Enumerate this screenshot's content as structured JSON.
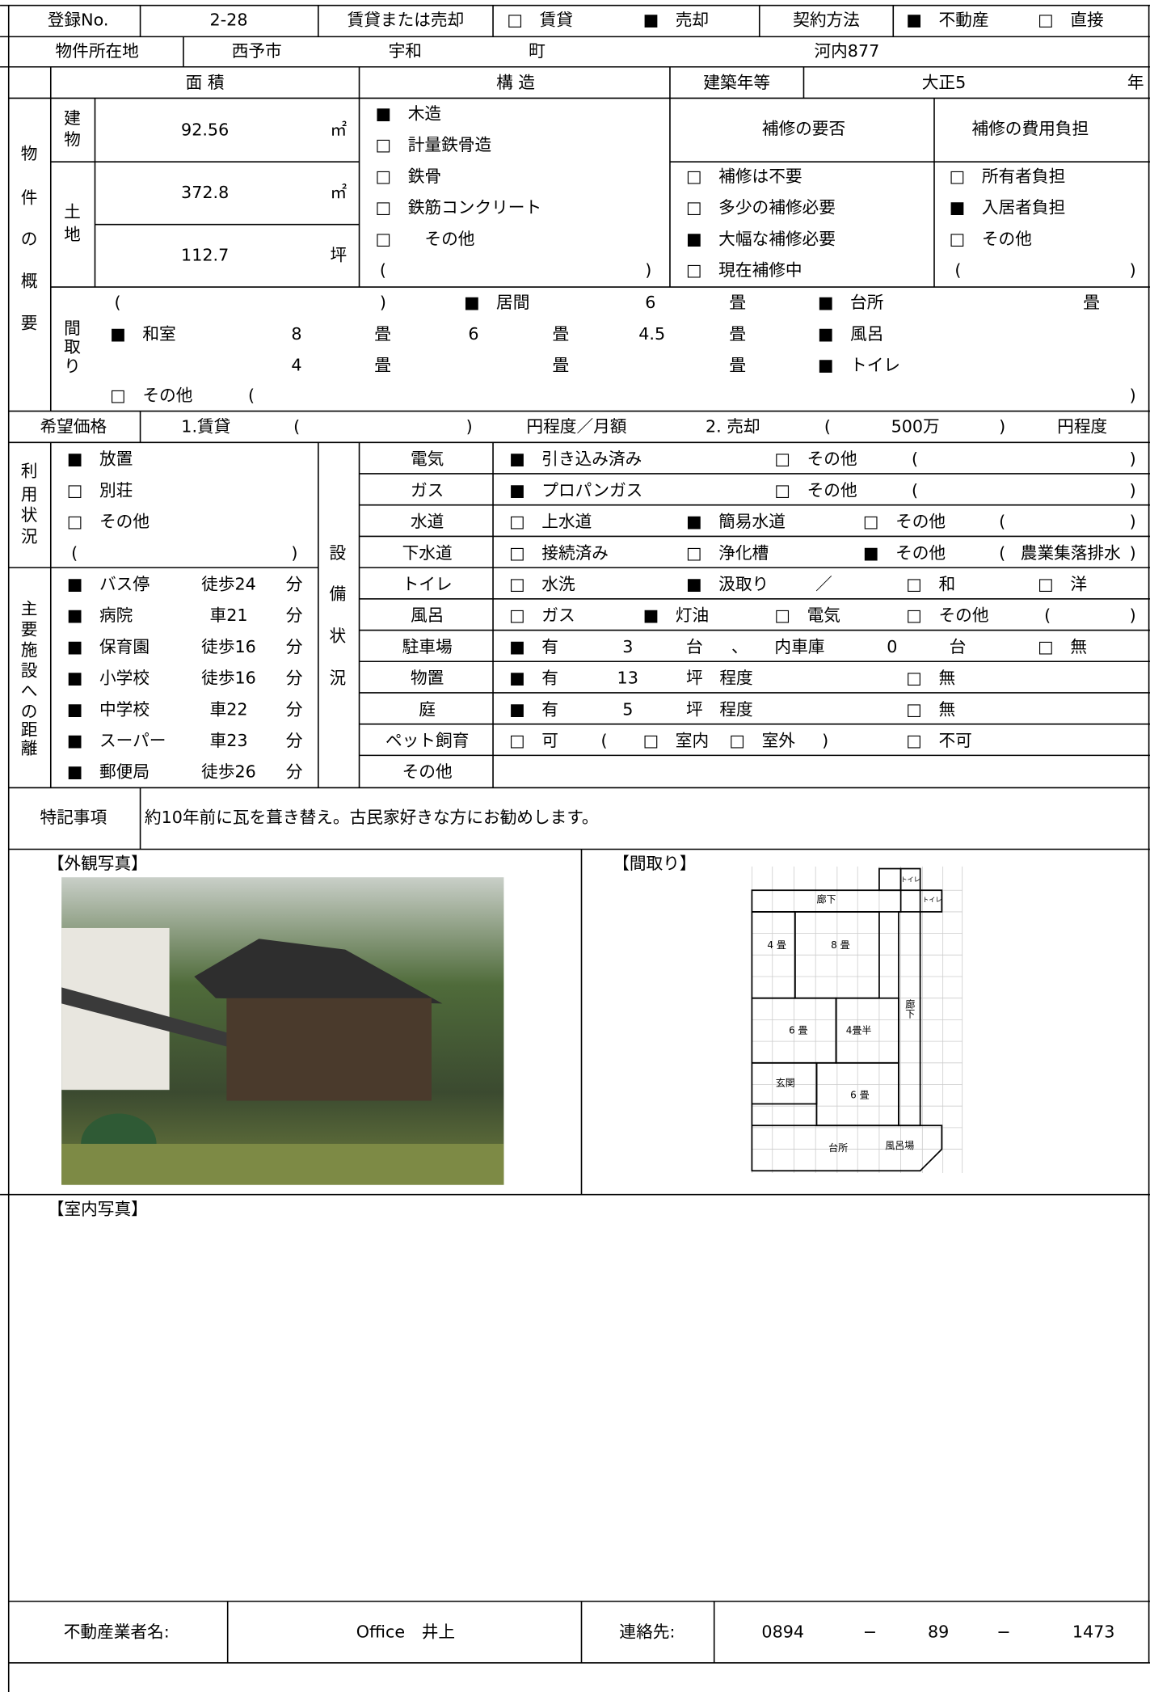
{
  "header": {
    "reg_label": "登録No.",
    "reg_no": "2-28",
    "deal_label": "賃貸または売却",
    "rent": "□　賃貸",
    "sale": "■　売却",
    "contract_label": "契約方法",
    "realtor": "■　不動産",
    "direct": "□　直接"
  },
  "location": {
    "label": "物件所在地",
    "city": "西予市",
    "town": "宇和",
    "town_suffix": "町",
    "address": "河内877"
  },
  "overview": {
    "side": [
      "物",
      "件",
      "の",
      "概",
      "要"
    ],
    "area_label": "面 積",
    "structure_label": "構 造",
    "year_label": "建築年等",
    "year": "大正5",
    "year_unit": "年",
    "building_label": [
      "建",
      "物"
    ],
    "building_area": "92.56",
    "sqm": "㎡",
    "land_label": [
      "土",
      "地"
    ],
    "land_area": "372.8",
    "land_sqm": "㎡",
    "land_tsubo": "112.7",
    "tsubo": "坪",
    "structure": [
      "■　木造",
      "□　計量鉄骨造",
      "□　鉄骨",
      "□　鉄筋コンクリート",
      "□　　その他"
    ],
    "structure_paren": [
      "(",
      ")"
    ],
    "repair_label": "補修の要否",
    "repair": [
      "□　補修は不要",
      "□　多少の補修必要",
      "■　大幅な補修必要",
      "□　現在補修中"
    ],
    "cost_label": "補修の費用負担",
    "cost": [
      "□　所有者負担",
      "■　入居者負担",
      "□　その他"
    ],
    "cost_paren": [
      "(",
      ")"
    ],
    "layout_label": [
      "間",
      "取",
      "り"
    ],
    "layout_rows": [
      [
        "(",
        ")",
        "■",
        "居間",
        "6",
        "畳",
        "■　台所",
        "畳"
      ],
      [
        "■　和室",
        "8",
        "畳",
        "6",
        "畳",
        "4.5",
        "畳",
        "■　風呂"
      ],
      [
        "4",
        "畳",
        "畳",
        "畳",
        "■　トイレ"
      ],
      [
        "□　その他",
        "(",
        ")"
      ]
    ]
  },
  "price": {
    "label": "希望価格",
    "items": [
      "1.賃貸",
      "(",
      ")",
      "円程度／月額",
      "2. 売却",
      "(",
      "500万",
      ")",
      "円程度"
    ]
  },
  "usage": {
    "side": [
      "利",
      "用",
      "状",
      "況"
    ],
    "items": [
      "■　放置",
      "□　別荘",
      "□　その他"
    ],
    "paren": [
      "(",
      ")"
    ]
  },
  "facilities": {
    "side": [
      "主",
      "要",
      "施",
      "設",
      "へ",
      "の",
      "距",
      "離"
    ],
    "rows": [
      [
        "■　バス停",
        "徒歩24",
        "分"
      ],
      [
        "■　病院",
        "車21",
        "分"
      ],
      [
        "■　保育園",
        "徒歩16",
        "分"
      ],
      [
        "■　小学校",
        "徒歩16",
        "分"
      ],
      [
        "■　中学校",
        "車22",
        "分"
      ],
      [
        "■　スーパー",
        "車23",
        "分"
      ],
      [
        "■　郵便局",
        "徒歩26",
        "分"
      ]
    ]
  },
  "equipment": {
    "side": [
      "設",
      "備",
      "状",
      "況"
    ],
    "rows": [
      {
        "label": "電気",
        "items": [
          "■　引き込み済み",
          "□　その他",
          "(",
          ")"
        ]
      },
      {
        "label": "ガス",
        "items": [
          "■　プロパンガス",
          "□　その他",
          "(",
          ")"
        ]
      },
      {
        "label": "水道",
        "items": [
          "□　上水道",
          "■　簡易水道",
          "□　その他",
          "(",
          ")"
        ]
      },
      {
        "label": "下水道",
        "items": [
          "□　接続済み",
          "□　浄化槽",
          "■　その他",
          "(",
          "農業集落排水",
          ")"
        ]
      },
      {
        "label": "トイレ",
        "items": [
          "□　水洗",
          "■　汲取り",
          "／",
          "□　和",
          "□　洋"
        ]
      },
      {
        "label": "風呂",
        "items": [
          "□　ガス",
          "■　灯油",
          "□　電気",
          "□　その他",
          "(",
          ")"
        ]
      },
      {
        "label": "駐車場",
        "items": [
          "■　有",
          "3",
          "台",
          "、",
          "内車庫",
          "0",
          "台",
          "□　無"
        ]
      },
      {
        "label": "物置",
        "items": [
          "■　有",
          "13",
          "坪　程度",
          "□　無"
        ]
      },
      {
        "label": "庭",
        "items": [
          "■　有",
          "5",
          "坪　程度",
          "□　無"
        ]
      },
      {
        "label": "ペット飼育",
        "items": [
          "□　可",
          "(",
          "□　室内",
          "□　室外",
          ")",
          "□　不可"
        ]
      },
      {
        "label": "その他",
        "items": []
      }
    ]
  },
  "notes": {
    "label": "特記事項",
    "text": "約10年前に瓦を葺き替え。古民家好きな方にお勧めします。"
  },
  "photos": {
    "exterior": "【外観写真】",
    "floorplan": "【間取り】",
    "interior": "【室内写真】"
  },
  "floorplan": {
    "labels": [
      "廊下",
      "トイレ",
      "トイレ",
      "4 畳",
      "8 畳",
      "6 畳",
      "4畳半",
      "廊下",
      "玄関",
      "6 畳",
      "台所",
      "風呂場"
    ]
  },
  "footer": {
    "agent_label": "不動産業者名:",
    "agent": "Office　井上",
    "contact_label": "連絡先:",
    "phone": [
      "0894",
      "−",
      "89",
      "−",
      "1473"
    ]
  }
}
